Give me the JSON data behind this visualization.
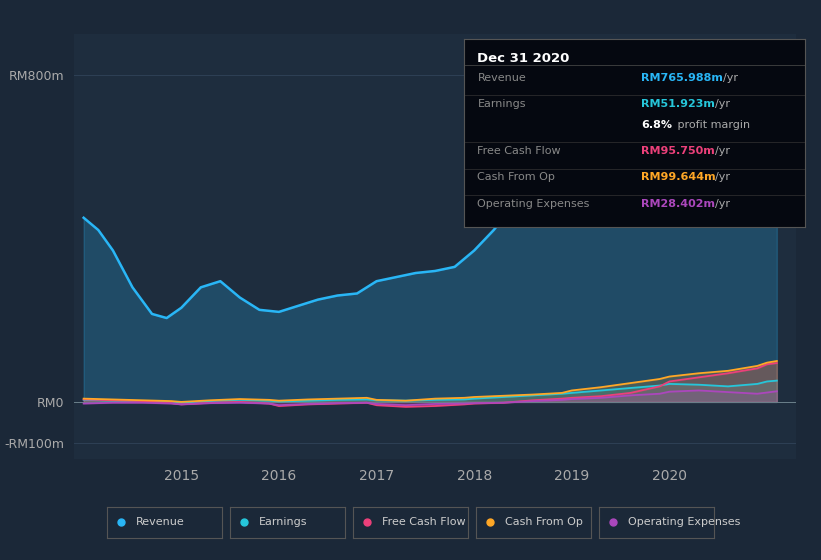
{
  "background_color": "#1b2838",
  "plot_bg_color": "#1e2d3e",
  "yticks": [
    "RM800m",
    "RM0",
    "-RM100m"
  ],
  "ytick_values": [
    800,
    0,
    -100
  ],
  "ylim": [
    -140,
    900
  ],
  "xlim_years": [
    2013.9,
    2021.3
  ],
  "x_ticks": [
    2015,
    2016,
    2017,
    2018,
    2019,
    2020
  ],
  "grid_color": "#2e4055",
  "line_colors": {
    "revenue": "#29b6f6",
    "earnings": "#26c6da",
    "free_cash_flow": "#ec407a",
    "cash_from_op": "#ffa726",
    "operating_expenses": "#ab47bc"
  },
  "legend": [
    {
      "label": "Revenue",
      "color": "#29b6f6"
    },
    {
      "label": "Earnings",
      "color": "#26c6da"
    },
    {
      "label": "Free Cash Flow",
      "color": "#ec407a"
    },
    {
      "label": "Cash From Op",
      "color": "#ffa726"
    },
    {
      "label": "Operating Expenses",
      "color": "#ab47bc"
    }
  ],
  "info_title": "Dec 31 2020",
  "info_rows": [
    {
      "label": "Revenue",
      "value": "RM765.988m",
      "value_color": "#29b6f6"
    },
    {
      "label": "Earnings",
      "value": "RM51.923m",
      "value_color": "#26c6da"
    },
    {
      "label": "",
      "value": "6.8%",
      "suffix": " profit margin",
      "value_color": "#ffffff"
    },
    {
      "label": "Free Cash Flow",
      "value": "RM95.750m",
      "value_color": "#ec407a"
    },
    {
      "label": "Cash From Op",
      "value": "RM99.644m",
      "value_color": "#ffa726"
    },
    {
      "label": "Operating Expenses",
      "value": "RM28.402m",
      "value_color": "#ab47bc"
    }
  ],
  "revenue_t": [
    2014.0,
    2014.15,
    2014.3,
    2014.5,
    2014.7,
    2014.85,
    2015.0,
    2015.2,
    2015.4,
    2015.6,
    2015.8,
    2016.0,
    2016.2,
    2016.4,
    2016.6,
    2016.8,
    2017.0,
    2017.2,
    2017.4,
    2017.6,
    2017.8,
    2018.0,
    2018.2,
    2018.4,
    2018.6,
    2018.8,
    2019.0,
    2019.2,
    2019.4,
    2019.6,
    2019.8,
    2020.0,
    2020.2,
    2020.4,
    2020.6,
    2020.8,
    2021.0,
    2021.1
  ],
  "revenue_v": [
    450,
    420,
    370,
    280,
    215,
    205,
    230,
    280,
    295,
    255,
    225,
    220,
    235,
    250,
    260,
    265,
    295,
    305,
    315,
    320,
    330,
    370,
    420,
    480,
    530,
    575,
    620,
    670,
    720,
    755,
    770,
    770,
    740,
    700,
    720,
    750,
    775,
    780
  ],
  "earnings_t": [
    2014.0,
    2014.3,
    2014.6,
    2014.9,
    2015.0,
    2015.3,
    2015.6,
    2015.9,
    2016.0,
    2016.3,
    2016.6,
    2016.9,
    2017.0,
    2017.3,
    2017.6,
    2017.9,
    2018.0,
    2018.3,
    2018.6,
    2018.9,
    2019.0,
    2019.3,
    2019.6,
    2019.9,
    2020.0,
    2020.3,
    2020.6,
    2020.9,
    2021.0,
    2021.1
  ],
  "earnings_v": [
    5,
    3,
    2,
    0,
    -2,
    2,
    5,
    3,
    1,
    3,
    5,
    6,
    4,
    3,
    5,
    6,
    8,
    12,
    16,
    20,
    22,
    28,
    34,
    40,
    44,
    42,
    38,
    44,
    50,
    52
  ],
  "fcf_v": [
    6,
    4,
    2,
    -3,
    -6,
    -2,
    0,
    -4,
    -10,
    -6,
    -4,
    -2,
    -8,
    -12,
    -10,
    -6,
    -4,
    -2,
    4,
    8,
    10,
    14,
    22,
    38,
    50,
    60,
    70,
    82,
    92,
    95
  ],
  "cfo_v": [
    8,
    6,
    4,
    2,
    0,
    4,
    7,
    5,
    3,
    6,
    8,
    10,
    5,
    3,
    8,
    10,
    12,
    15,
    18,
    22,
    28,
    36,
    46,
    56,
    62,
    70,
    76,
    88,
    96,
    100
  ],
  "opex_v": [
    -4,
    -2,
    -2,
    -4,
    -6,
    -3,
    -2,
    -4,
    -8,
    -5,
    -3,
    -2,
    -5,
    -8,
    -5,
    -4,
    -3,
    -2,
    2,
    5,
    7,
    10,
    16,
    20,
    25,
    28,
    24,
    20,
    23,
    26
  ]
}
